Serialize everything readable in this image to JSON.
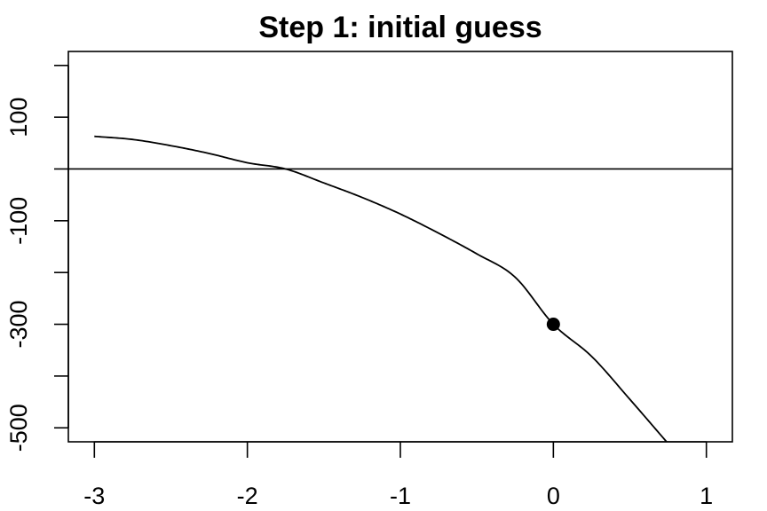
{
  "chart_data": {
    "type": "line",
    "title": "Step 1: initial guess",
    "xlabel": "",
    "ylabel": "",
    "xlim": [
      -3.17,
      1.17
    ],
    "ylim": [
      -527,
      227
    ],
    "x_ticks": [
      -3,
      -2,
      -1,
      0,
      1
    ],
    "x_tick_labels": [
      "-3",
      "-2",
      "-1",
      "0",
      "1"
    ],
    "y_ticks": [
      -500,
      -400,
      -300,
      -200,
      -100,
      0,
      100,
      200
    ],
    "y_tick_labels": [
      "-500",
      "",
      "-300",
      "",
      "-100",
      "",
      "100",
      ""
    ],
    "hline": {
      "y": 0
    },
    "series": [
      {
        "x": [
          -3.0,
          -2.75,
          -2.5,
          -2.25,
          -2.0,
          -1.75,
          -1.5,
          -1.25,
          -1.0,
          -0.75,
          -0.5,
          -0.25,
          0.0,
          0.25,
          0.5,
          0.74
        ],
        "y": [
          63,
          57,
          45,
          30,
          12,
          0,
          -27,
          -55,
          -87,
          -124,
          -164,
          -209,
          -300,
          -362,
          -445,
          -527
        ]
      }
    ],
    "points": [
      {
        "x": 0,
        "y": -300
      }
    ],
    "grid": false,
    "legend": "none"
  }
}
